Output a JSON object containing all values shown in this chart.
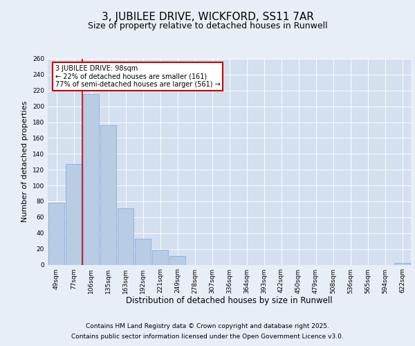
{
  "title": "3, JUBILEE DRIVE, WICKFORD, SS11 7AR",
  "subtitle": "Size of property relative to detached houses in Runwell",
  "xlabel": "Distribution of detached houses by size in Runwell",
  "ylabel": "Number of detached properties",
  "categories": [
    "49sqm",
    "77sqm",
    "106sqm",
    "135sqm",
    "163sqm",
    "192sqm",
    "221sqm",
    "249sqm",
    "278sqm",
    "307sqm",
    "336sqm",
    "364sqm",
    "393sqm",
    "422sqm",
    "450sqm",
    "479sqm",
    "508sqm",
    "536sqm",
    "565sqm",
    "594sqm",
    "622sqm"
  ],
  "values": [
    78,
    127,
    215,
    176,
    71,
    33,
    19,
    11,
    0,
    0,
    0,
    0,
    0,
    0,
    0,
    0,
    0,
    0,
    0,
    0,
    2
  ],
  "bar_color": "#b8cce4",
  "bar_edge_color": "#7ca6d8",
  "property_line_color": "#cc0000",
  "annotation_line1": "3 JUBILEE DRIVE: 98sqm",
  "annotation_line2": "← 22% of detached houses are smaller (161)",
  "annotation_line3": "77% of semi-detached houses are larger (561) →",
  "annotation_box_color": "#cc0000",
  "ylim": [
    0,
    260
  ],
  "yticks": [
    0,
    20,
    40,
    60,
    80,
    100,
    120,
    140,
    160,
    180,
    200,
    220,
    240,
    260
  ],
  "background_color": "#e8eef5",
  "plot_bg_color": "#d4dff0",
  "grid_color": "#ffffff",
  "footer_line1": "Contains HM Land Registry data © Crown copyright and database right 2025.",
  "footer_line2": "Contains public sector information licensed under the Open Government Licence v3.0.",
  "title_fontsize": 11,
  "subtitle_fontsize": 9,
  "axis_label_fontsize": 8,
  "tick_fontsize": 6.5,
  "annotation_fontsize": 7,
  "footer_fontsize": 6.5
}
